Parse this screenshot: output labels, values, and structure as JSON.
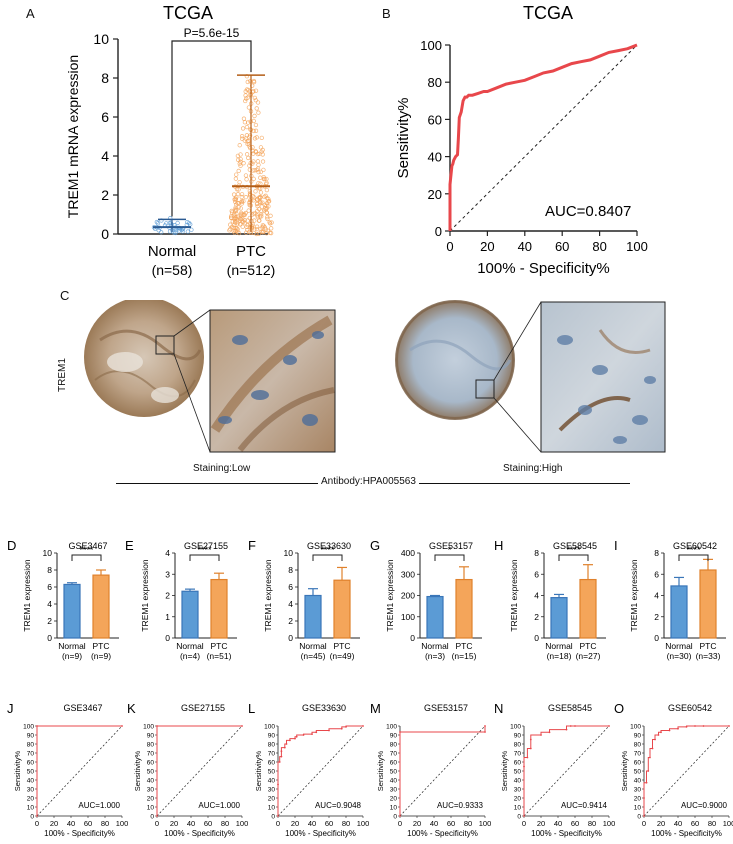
{
  "panels": {
    "A": "A",
    "B": "B",
    "C": "C",
    "D": "D",
    "E": "E",
    "F": "F",
    "G": "G",
    "H": "H",
    "I": "I",
    "J": "J",
    "K": "K",
    "L": "L",
    "M": "M",
    "N": "N",
    "O": "O"
  },
  "colors": {
    "normal_bar": "#5b9bd5",
    "ptc_bar": "#f4a55a",
    "roc_line": "#e8474b",
    "tissue_brown": "#a07a55",
    "tissue_blue": "#9fb6cf"
  },
  "panel_c": {
    "row_label": "TREM1",
    "left_caption": "Staining:Low",
    "right_caption": "Staining:High",
    "antibody": "Antibody:HPA005563"
  },
  "chart_data": [
    {
      "id": "A",
      "type": "scatter",
      "title": "TCGA",
      "ylabel": "TREM1 mRNA expression",
      "ylim": [
        0,
        10
      ],
      "yticks": [
        "0",
        "2",
        "4",
        "6",
        "8",
        "10"
      ],
      "categories": [
        "Normal",
        "PTC"
      ],
      "ns": [
        "(n=58)",
        "(n=512)"
      ],
      "means": [
        0.35,
        2.45
      ],
      "sd_upper": [
        0.75,
        8.15
      ],
      "sd_lower": [
        0.1,
        0.1
      ],
      "pvalue": "P=5.6e-15"
    },
    {
      "id": "B",
      "type": "line",
      "title": "TCGA",
      "xlabel": "100% - Specificity%",
      "ylabel": "Sensitivity%",
      "xlim": [
        0,
        100
      ],
      "ylim": [
        0,
        100
      ],
      "xticks": [
        "0",
        "20",
        "40",
        "60",
        "80",
        "100"
      ],
      "yticks": [
        "0",
        "20",
        "40",
        "60",
        "80",
        "100"
      ],
      "auc": "AUC=0.8407",
      "x": [
        0,
        0,
        1,
        1.5,
        2,
        3,
        4,
        4.5,
        5,
        6,
        7,
        8,
        9,
        10,
        12,
        15,
        18,
        20,
        25,
        30,
        35,
        40,
        45,
        50,
        55,
        60,
        65,
        70,
        75,
        80,
        85,
        90,
        95,
        100
      ],
      "y": [
        0,
        25,
        35,
        36,
        38,
        40,
        41,
        50,
        61,
        64,
        70,
        72,
        72,
        73,
        73,
        74,
        75,
        75,
        77,
        79,
        80,
        81,
        83,
        85,
        86,
        88,
        90,
        91,
        92,
        94,
        96,
        97,
        98,
        100
      ]
    },
    {
      "id": "D",
      "type": "bar",
      "title": "GSE3467",
      "ylabel": "TREM1 expression",
      "ylim": [
        0,
        10
      ],
      "yticks": [
        "0",
        "2",
        "4",
        "6",
        "8",
        "10"
      ],
      "categories": [
        "Normal",
        "PTC"
      ],
      "ns": [
        "(n=9)",
        "(n=9)"
      ],
      "values": [
        6.3,
        7.4
      ],
      "errors": [
        0.2,
        0.6
      ],
      "sig": "****"
    },
    {
      "id": "E",
      "type": "bar",
      "title": "GSE27155",
      "ylabel": "TREM1 expression",
      "ylim": [
        0,
        4
      ],
      "yticks": [
        "0",
        "1",
        "2",
        "3",
        "4"
      ],
      "categories": [
        "Normal",
        "PTC"
      ],
      "ns": [
        "(n=4)",
        "(n=51)"
      ],
      "values": [
        2.2,
        2.75
      ],
      "errors": [
        0.1,
        0.3
      ],
      "sig": "****"
    },
    {
      "id": "F",
      "type": "bar",
      "title": "GSE33630",
      "ylabel": "TREM1 expression",
      "ylim": [
        0,
        10
      ],
      "yticks": [
        "0",
        "2",
        "4",
        "6",
        "8",
        "10"
      ],
      "categories": [
        "Normal",
        "PTC"
      ],
      "ns": [
        "(n=45)",
        "(n=49)"
      ],
      "values": [
        5.0,
        6.8
      ],
      "errors": [
        0.8,
        1.5
      ],
      "sig": "****"
    },
    {
      "id": "G",
      "type": "bar",
      "title": "GSE53157",
      "ylabel": "TREM1 expression",
      "ylim": [
        0,
        400
      ],
      "yticks": [
        "0",
        "100",
        "200",
        "300",
        "400"
      ],
      "categories": [
        "Normal",
        "PTC"
      ],
      "ns": [
        "(n=3)",
        "(n=15)"
      ],
      "values": [
        195,
        275
      ],
      "errors": [
        5,
        60
      ],
      "sig": "*"
    },
    {
      "id": "H",
      "type": "bar",
      "title": "GSE58545",
      "ylabel": "TREM1 expression",
      "ylim": [
        0,
        8
      ],
      "yticks": [
        "0",
        "2",
        "4",
        "6",
        "8"
      ],
      "categories": [
        "Normal",
        "PTC"
      ],
      "ns": [
        "(n=18)",
        "(n=27)"
      ],
      "values": [
        3.8,
        5.5
      ],
      "errors": [
        0.3,
        1.4
      ],
      "sig": "****"
    },
    {
      "id": "I",
      "type": "bar",
      "title": "GSE60542",
      "ylabel": "TREM1 expression",
      "ylim": [
        0,
        8
      ],
      "yticks": [
        "0",
        "2",
        "4",
        "6",
        "8"
      ],
      "categories": [
        "Normal",
        "PTC"
      ],
      "ns": [
        "(n=30)",
        "(n=33)"
      ],
      "values": [
        4.9,
        6.4
      ],
      "errors": [
        0.8,
        1.0
      ],
      "sig": "****"
    },
    {
      "id": "J",
      "type": "line",
      "title": "GSE3467",
      "auc": "AUC=1.000",
      "xlabel": "100% - Specificity%",
      "ylabel": "Sensitivity%",
      "xlim": [
        0,
        100
      ],
      "ylim": [
        0,
        100
      ],
      "xticks": [
        "0",
        "20",
        "40",
        "60",
        "80",
        "100"
      ],
      "yticks": [
        "0",
        "10",
        "20",
        "30",
        "40",
        "50",
        "60",
        "70",
        "80",
        "90",
        "100"
      ],
      "x": [
        0,
        0,
        100
      ],
      "y": [
        0,
        100,
        100
      ]
    },
    {
      "id": "K",
      "type": "line",
      "title": "GSE27155",
      "auc": "AUC=1.000",
      "xlabel": "100% - Specificity%",
      "ylabel": "Sensitivity%",
      "xlim": [
        0,
        100
      ],
      "ylim": [
        0,
        100
      ],
      "xticks": [
        "0",
        "20",
        "40",
        "60",
        "80",
        "100"
      ],
      "yticks": [
        "0",
        "10",
        "20",
        "30",
        "40",
        "50",
        "60",
        "70",
        "80",
        "90",
        "100"
      ],
      "x": [
        0,
        0,
        100
      ],
      "y": [
        0,
        100,
        100
      ]
    },
    {
      "id": "L",
      "type": "line",
      "title": "GSE33630",
      "auc": "AUC=0.9048",
      "xlabel": "100% - Specificity%",
      "ylabel": "Sensitivity%",
      "xlim": [
        0,
        100
      ],
      "ylim": [
        0,
        100
      ],
      "xticks": [
        "0",
        "20",
        "40",
        "60",
        "80",
        "100"
      ],
      "yticks": [
        "0",
        "10",
        "20",
        "30",
        "40",
        "50",
        "60",
        "70",
        "80",
        "90",
        "100"
      ],
      "x": [
        0,
        0,
        2,
        4,
        4,
        8,
        10,
        14,
        20,
        22,
        30,
        40,
        45,
        60,
        75,
        80,
        100
      ],
      "y": [
        0,
        35,
        60,
        66,
        72,
        76,
        80,
        84,
        86,
        88,
        90,
        91,
        93,
        95,
        97,
        99,
        100
      ]
    },
    {
      "id": "M",
      "type": "line",
      "title": "GSE53157",
      "auc": "AUC=0.9333",
      "xlabel": "100% - Specificity%",
      "ylabel": "Sensitivity%",
      "xlim": [
        0,
        100
      ],
      "ylim": [
        0,
        100
      ],
      "xticks": [
        "0",
        "20",
        "40",
        "60",
        "80",
        "100"
      ],
      "yticks": [
        "0",
        "10",
        "20",
        "30",
        "40",
        "50",
        "60",
        "70",
        "80",
        "90",
        "100"
      ],
      "x": [
        0,
        0,
        100,
        100
      ],
      "y": [
        0,
        93.3,
        93.3,
        100
      ]
    },
    {
      "id": "N",
      "type": "line",
      "title": "GSE58545",
      "auc": "AUC=0.9414",
      "xlabel": "100% - Specificity%",
      "ylabel": "Sensitivity%",
      "xlim": [
        0,
        100
      ],
      "ylim": [
        0,
        100
      ],
      "xticks": [
        "0",
        "20",
        "40",
        "60",
        "80",
        "100"
      ],
      "yticks": [
        "0",
        "10",
        "20",
        "30",
        "40",
        "50",
        "60",
        "70",
        "80",
        "90",
        "100"
      ],
      "x": [
        0,
        0,
        4,
        8,
        8,
        20,
        30,
        50,
        55,
        60,
        100
      ],
      "y": [
        0,
        55,
        65,
        75,
        85,
        90,
        93,
        96,
        100,
        100,
        100
      ]
    },
    {
      "id": "O",
      "type": "line",
      "title": "GSE60542",
      "auc": "AUC=0.9000",
      "xlabel": "100% - Specificity%",
      "ylabel": "Sensitivity%",
      "xlim": [
        0,
        100
      ],
      "ylim": [
        0,
        100
      ],
      "xticks": [
        "0",
        "20",
        "40",
        "60",
        "80",
        "100"
      ],
      "yticks": [
        "0",
        "10",
        "20",
        "30",
        "40",
        "50",
        "60",
        "70",
        "80",
        "90",
        "100"
      ],
      "x": [
        0,
        0,
        3,
        5,
        7,
        10,
        13,
        17,
        20,
        30,
        40,
        50,
        60,
        70,
        100
      ],
      "y": [
        0,
        20,
        37,
        50,
        65,
        75,
        85,
        90,
        93,
        95,
        97,
        99,
        100,
        100,
        100
      ]
    }
  ]
}
